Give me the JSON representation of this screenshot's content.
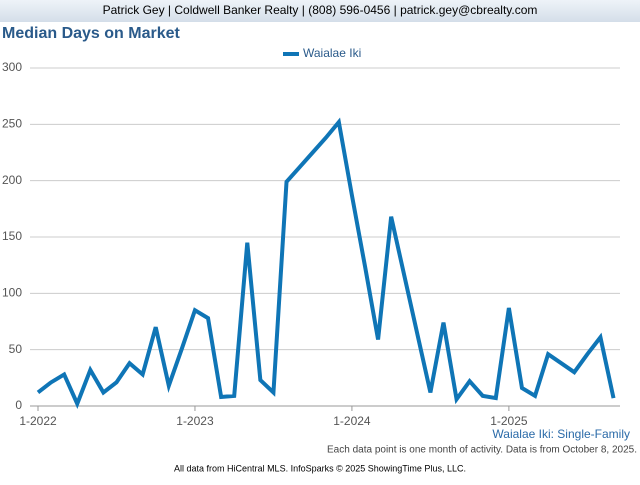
{
  "header": "Patrick Gey | Coldwell Banker Realty | (808) 596-0456 | patrick.gey@cbrealty.com",
  "chart_data": {
    "type": "line",
    "title": "Median Days on Market",
    "x": [
      "2022-01",
      "2022-02",
      "2022-03",
      "2022-04",
      "2022-05",
      "2022-06",
      "2022-07",
      "2022-08",
      "2022-09",
      "2022-10",
      "2022-11",
      "2022-12",
      "2023-01",
      "2023-02",
      "2023-03",
      "2023-04",
      "2023-05",
      "2023-06",
      "2023-07",
      "2023-08",
      "2023-09",
      "2023-10",
      "2023-11",
      "2023-12",
      "2024-01",
      "2024-02",
      "2024-03",
      "2024-04",
      "2024-05",
      "2024-06",
      "2024-07",
      "2024-08",
      "2024-09",
      "2024-10",
      "2024-11",
      "2024-12",
      "2025-01",
      "2025-02",
      "2025-03",
      "2025-04",
      "2025-05",
      "2025-06",
      "2025-07",
      "2025-08",
      "2025-09"
    ],
    "series": [
      {
        "name": "Waialae Iki",
        "color": "#0f75b6",
        "values": [
          12,
          21,
          28,
          2,
          32,
          12,
          21,
          38,
          28,
          70,
          18,
          51,
          85,
          78,
          8,
          9,
          145,
          23,
          12,
          199,
          212,
          225,
          238,
          252,
          187,
          124,
          59,
          168,
          116,
          64,
          12,
          74,
          6,
          22,
          9,
          7,
          87,
          16,
          9,
          46,
          38,
          30,
          46,
          61,
          7
        ]
      }
    ],
    "xticks": [
      {
        "value": "2022-01",
        "label": "1-2022"
      },
      {
        "value": "2023-01",
        "label": "1-2023"
      },
      {
        "value": "2024-01",
        "label": "1-2024"
      },
      {
        "value": "2025-01",
        "label": "1-2025"
      }
    ],
    "ylim": [
      0,
      300
    ],
    "yticks": [
      0,
      50,
      100,
      150,
      200,
      250,
      300
    ],
    "grid": true,
    "legend": "top",
    "series_note": "Waialae Iki: Single-Family",
    "footnote": "Each data point is one month of activity. Data is from October 8, 2025.",
    "source": "All data from HiCentral MLS. InfoSparks © 2025 ShowingTime Plus, LLC."
  }
}
